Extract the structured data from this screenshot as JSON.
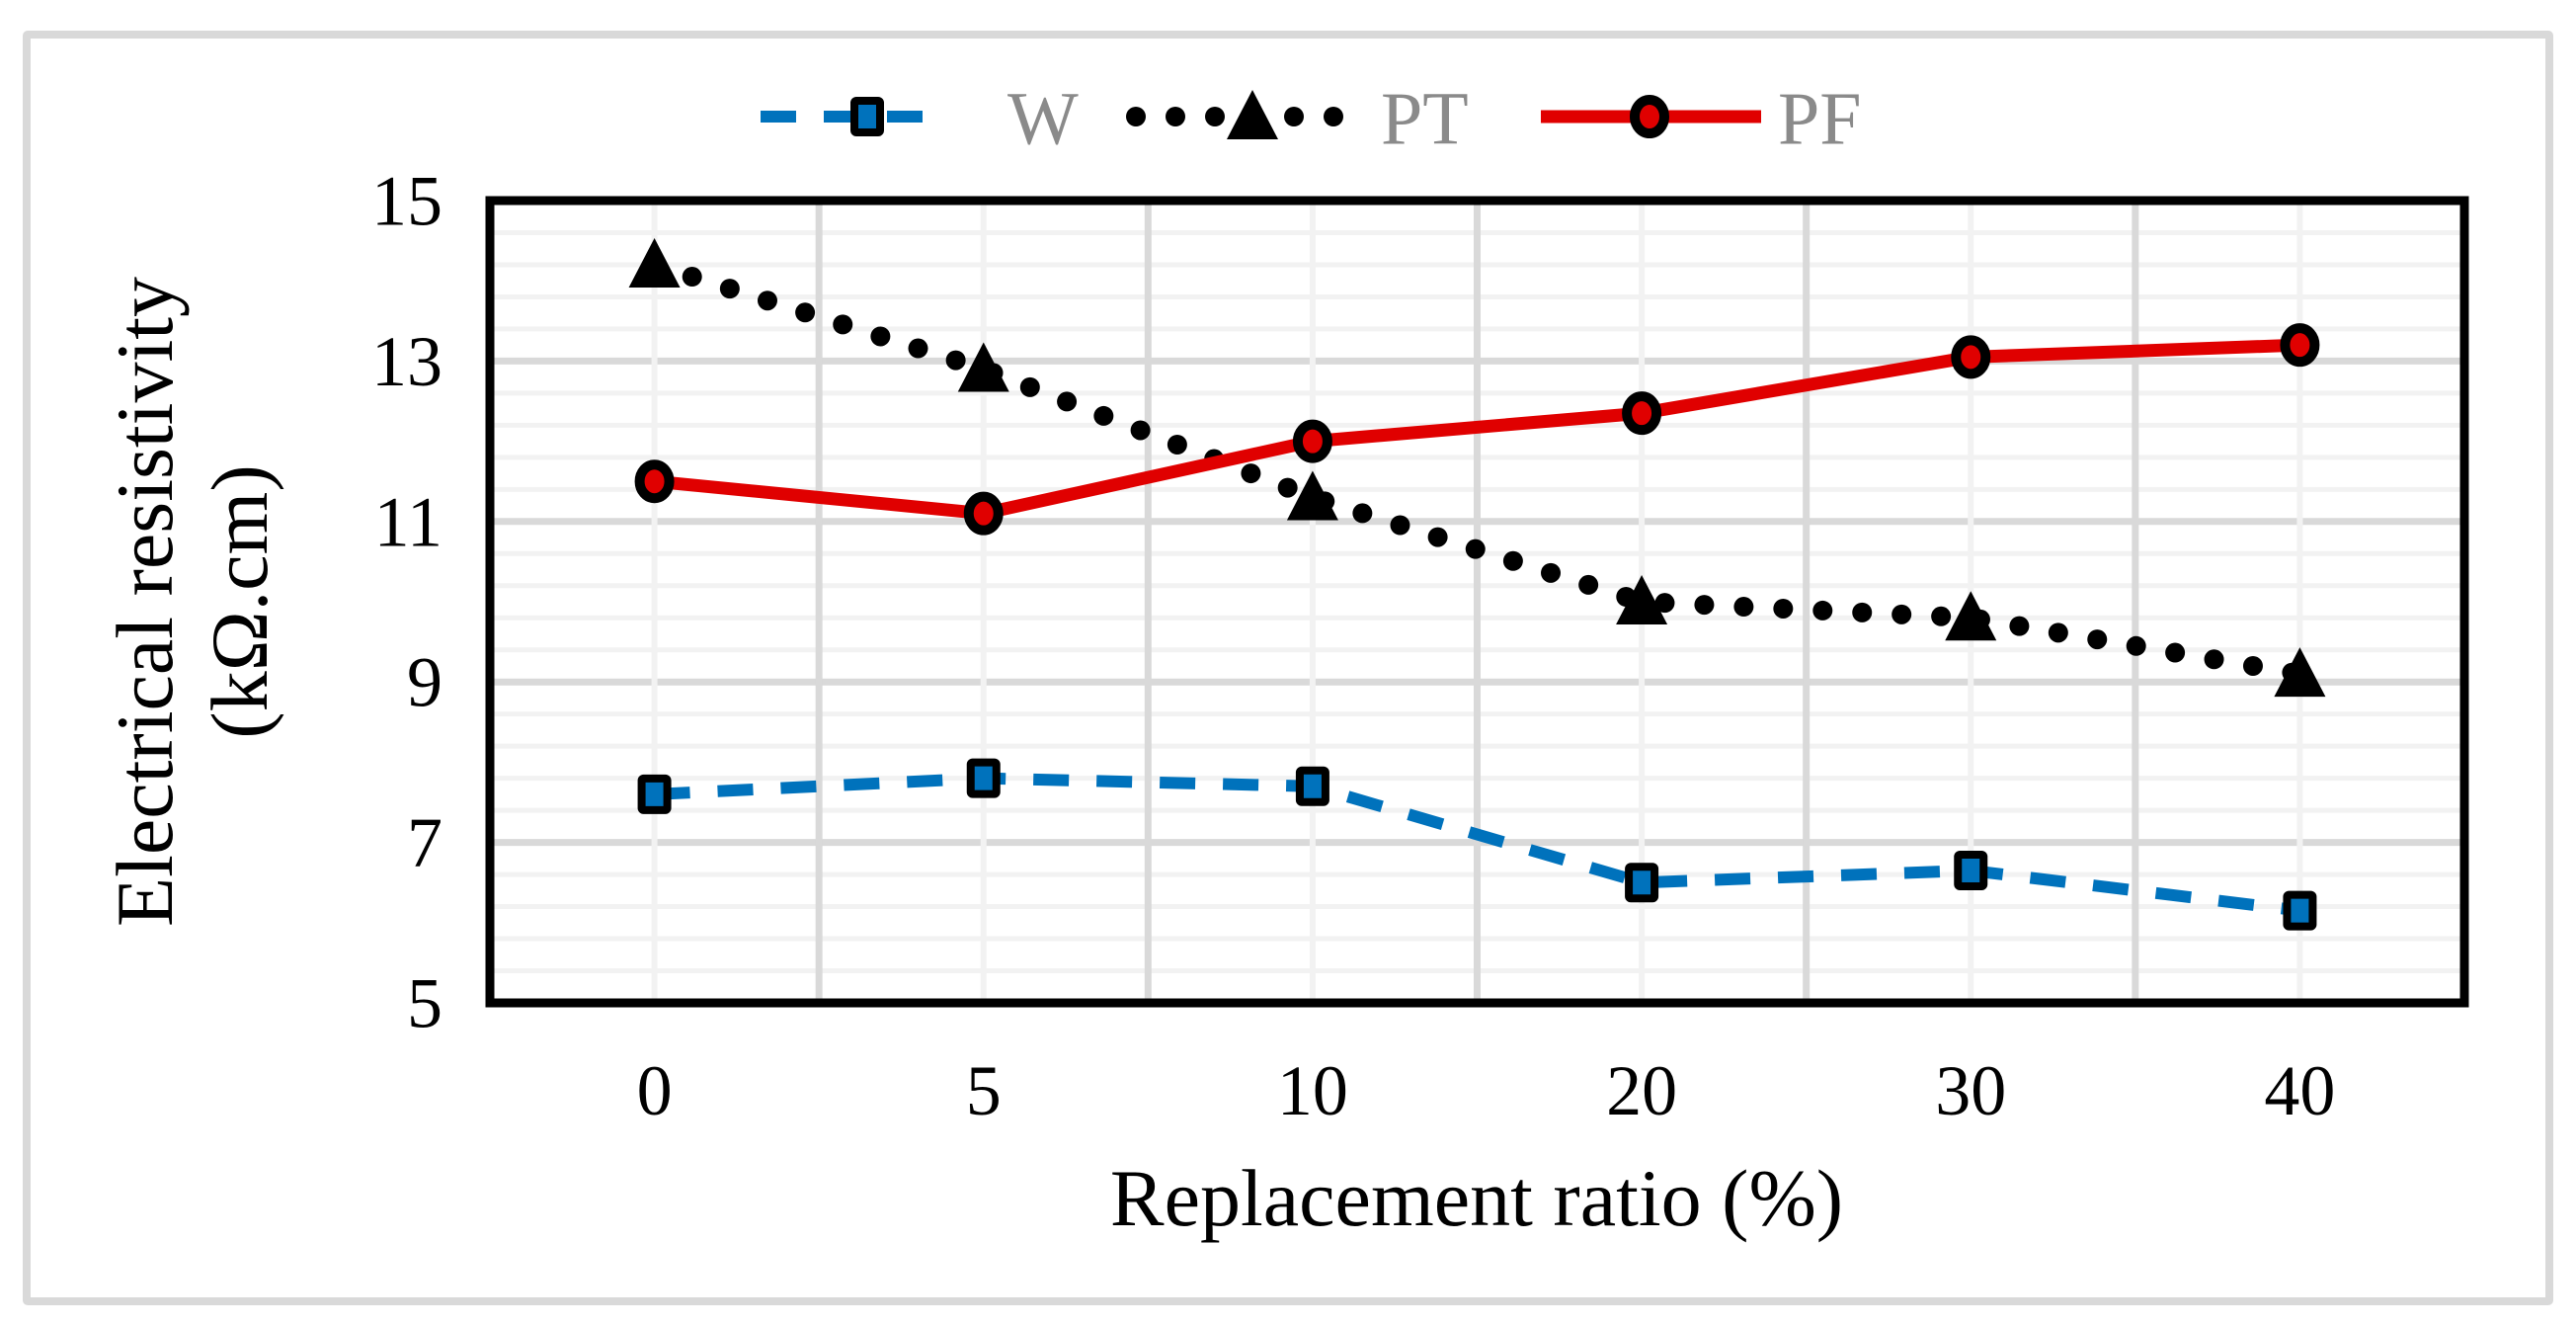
{
  "figure": {
    "background_color": "#ffffff",
    "frame_color": "#d9d9d9",
    "plot_border_color": "#000000"
  },
  "chart_data": {
    "type": "line",
    "title": "",
    "xlabel": "Replacement ratio (%)",
    "ylabel": "Electrical resistivity (kΩ.cm)",
    "ylabel_lines": [
      "Electrical resistivity",
      "(kΩ.cm)"
    ],
    "x_axis_type": "categorical",
    "categories": [
      "0",
      "5",
      "10",
      "20",
      "30",
      "40"
    ],
    "y_ticks": [
      15,
      13,
      11,
      9,
      7,
      5
    ],
    "ylim": [
      5,
      15
    ],
    "y_major_step": 2,
    "y_minor_step": 0.4,
    "grid": {
      "horizontal_major": true,
      "horizontal_minor": true,
      "vertical_major_at_category_boundaries": true,
      "vertical_minor_at_category_centers": true,
      "major_color": "#d9d9d9",
      "minor_color": "#f2f2f2"
    },
    "legend_position": "top",
    "legend_text_color": "#8a8a8a",
    "series": [
      {
        "name": "W",
        "color": "#0072BC",
        "line_style": "dashed",
        "marker": "square",
        "marker_border_color": "#000000",
        "values": [
          7.6,
          7.8,
          7.7,
          6.5,
          6.65,
          6.15
        ]
      },
      {
        "name": "PT",
        "color": "#000000",
        "line_style": "dotted",
        "marker": "triangle",
        "marker_border_color": "#000000",
        "values": [
          14.2,
          12.9,
          11.3,
          10.0,
          9.8,
          9.1
        ]
      },
      {
        "name": "PF",
        "color": "#E00000",
        "line_style": "solid",
        "marker": "circle",
        "marker_border_color": "#000000",
        "values": [
          11.5,
          11.1,
          12.0,
          12.35,
          13.05,
          13.2
        ]
      }
    ]
  }
}
